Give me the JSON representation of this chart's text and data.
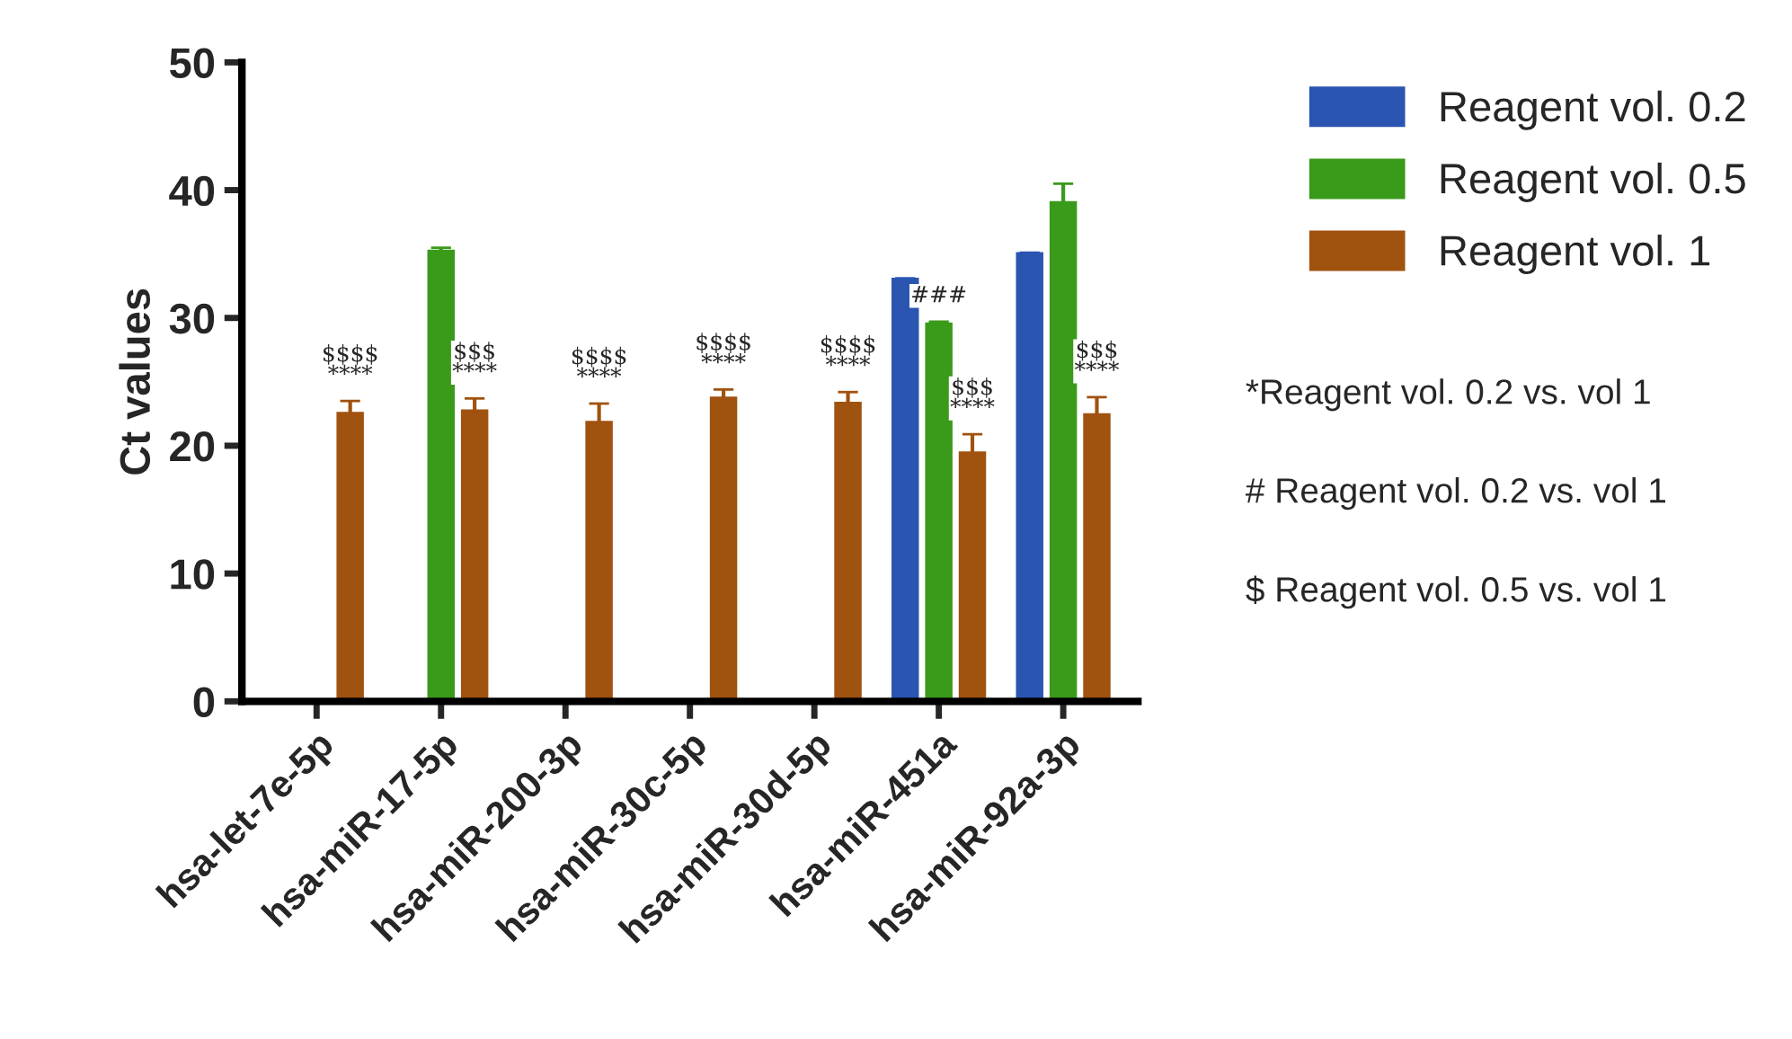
{
  "chart_data": {
    "type": "bar",
    "ylabel": "Ct values",
    "categories": [
      "hsa-let-7e-5p",
      "hsa-miR-17-5p",
      "hsa-miR-200-3p",
      "hsa-miR-30c-5p",
      "hsa-miR-30d-5p",
      "hsa-miR-451a",
      "hsa-miR-92a-3p"
    ],
    "series": [
      {
        "name": "Reagent vol. 0.2",
        "color": "#2a55b0",
        "values": [
          null,
          null,
          null,
          null,
          null,
          33.0,
          35.0
        ],
        "errors": [
          null,
          null,
          null,
          null,
          null,
          0.1,
          0.1
        ]
      },
      {
        "name": "Reagent vol. 0.5",
        "color": "#3a9a1a",
        "values": [
          null,
          35.2,
          null,
          null,
          null,
          29.5,
          39.0
        ],
        "errors": [
          null,
          0.3,
          null,
          null,
          null,
          0.2,
          1.5
        ],
        "value_labels": [
          null,
          null,
          null,
          null,
          null,
          "###",
          null
        ]
      },
      {
        "name": "Reagent vol. 1",
        "color": "#a0520f",
        "values": [
          22.5,
          22.7,
          21.8,
          23.7,
          23.3,
          19.4,
          22.4
        ],
        "errors": [
          1.0,
          1.0,
          1.5,
          0.7,
          0.9,
          1.5,
          1.4
        ],
        "value_labels": [
          "$$$$\n****",
          "$$$\n****",
          "$$$$\n****",
          "$$$$\n****",
          "$$$$\n****",
          "$$$\n****",
          "$$$\n****"
        ]
      }
    ],
    "ylim": [
      0,
      50
    ],
    "yticks": [
      0,
      10,
      20,
      30,
      40,
      50
    ],
    "grid": false,
    "legend": "top right",
    "annotations": [
      "*Reagent vol. 0.2 vs. vol 1",
      "# Reagent vol. 0.2 vs. vol 1",
      "$ Reagent vol. 0.5 vs. vol 1"
    ]
  }
}
